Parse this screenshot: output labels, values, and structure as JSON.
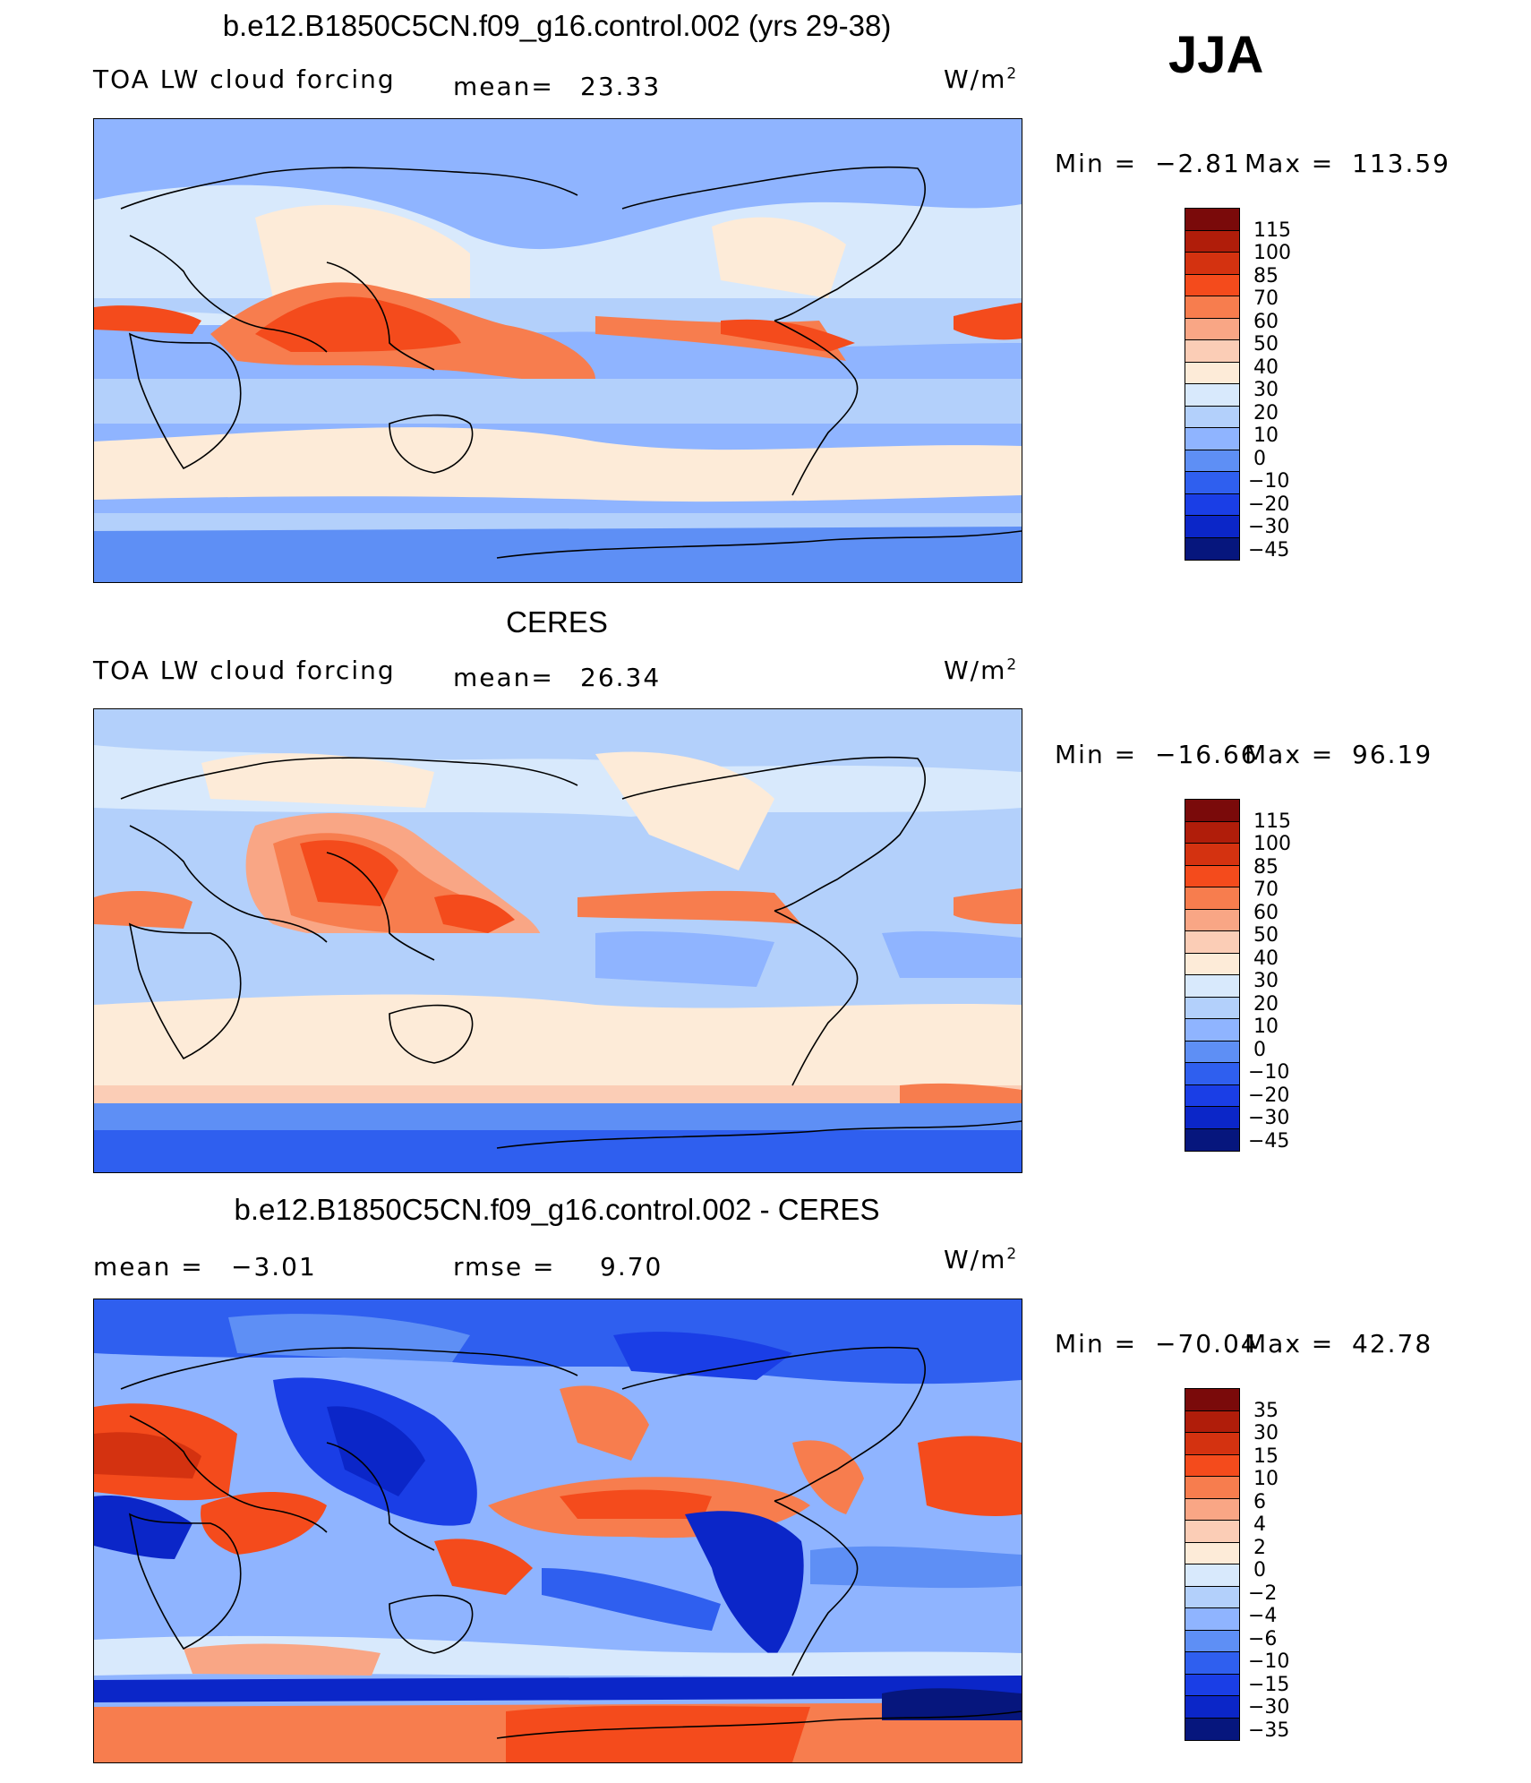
{
  "season": "JJA",
  "panels": [
    {
      "title": "b.e12.B1850C5CN.f09_g16.control.002 (yrs 29-38)",
      "left_label": "TOA LW cloud forcing",
      "mid_label": "mean=",
      "mid_value": "23.33",
      "unit": "W/m",
      "unit_sup": "2",
      "min_label": "Min =",
      "min_value": "−2.81",
      "max_label": "Max =",
      "max_value": "113.59",
      "colorbar_ticks": [
        "115",
        "100",
        "85",
        "70",
        "60",
        "50",
        "40",
        "30",
        "20",
        "10",
        "0",
        "−10",
        "−20",
        "−30",
        "−45"
      ]
    },
    {
      "title": "CERES",
      "left_label": "TOA LW cloud forcing",
      "mid_label": "mean=",
      "mid_value": "26.34",
      "unit": "W/m",
      "unit_sup": "2",
      "min_label": "Min =",
      "min_value": "−16.66",
      "max_label": "Max =",
      "max_value": "96.19",
      "colorbar_ticks": [
        "115",
        "100",
        "85",
        "70",
        "60",
        "50",
        "40",
        "30",
        "20",
        "10",
        "0",
        "−10",
        "−20",
        "−30",
        "−45"
      ]
    },
    {
      "title": "b.e12.B1850C5CN.f09_g16.control.002 - CERES",
      "left_label": "mean =",
      "left_value": "−3.01",
      "mid_label": "rmse =",
      "mid_value": "9.70",
      "unit": "W/m",
      "unit_sup": "2",
      "min_label": "Min =",
      "min_value": "−70.04",
      "max_label": "Max =",
      "max_value": "42.78",
      "colorbar_ticks": [
        "35",
        "30",
        "15",
        "10",
        "6",
        "4",
        "2",
        "0",
        "−2",
        "−4",
        "−6",
        "−10",
        "−15",
        "−30",
        "−35"
      ]
    }
  ],
  "colorbar_colors": [
    "#7a0a0a",
    "#b01d0a",
    "#d43210",
    "#f44b1c",
    "#f77d4e",
    "#f9a685",
    "#fbcdb6",
    "#fdebd8",
    "#d8e9fc",
    "#b3d0fb",
    "#8fb4ff",
    "#5e8ff5",
    "#2f5fef",
    "#1a3ee6",
    "#0b26c8",
    "#06167d"
  ]
}
